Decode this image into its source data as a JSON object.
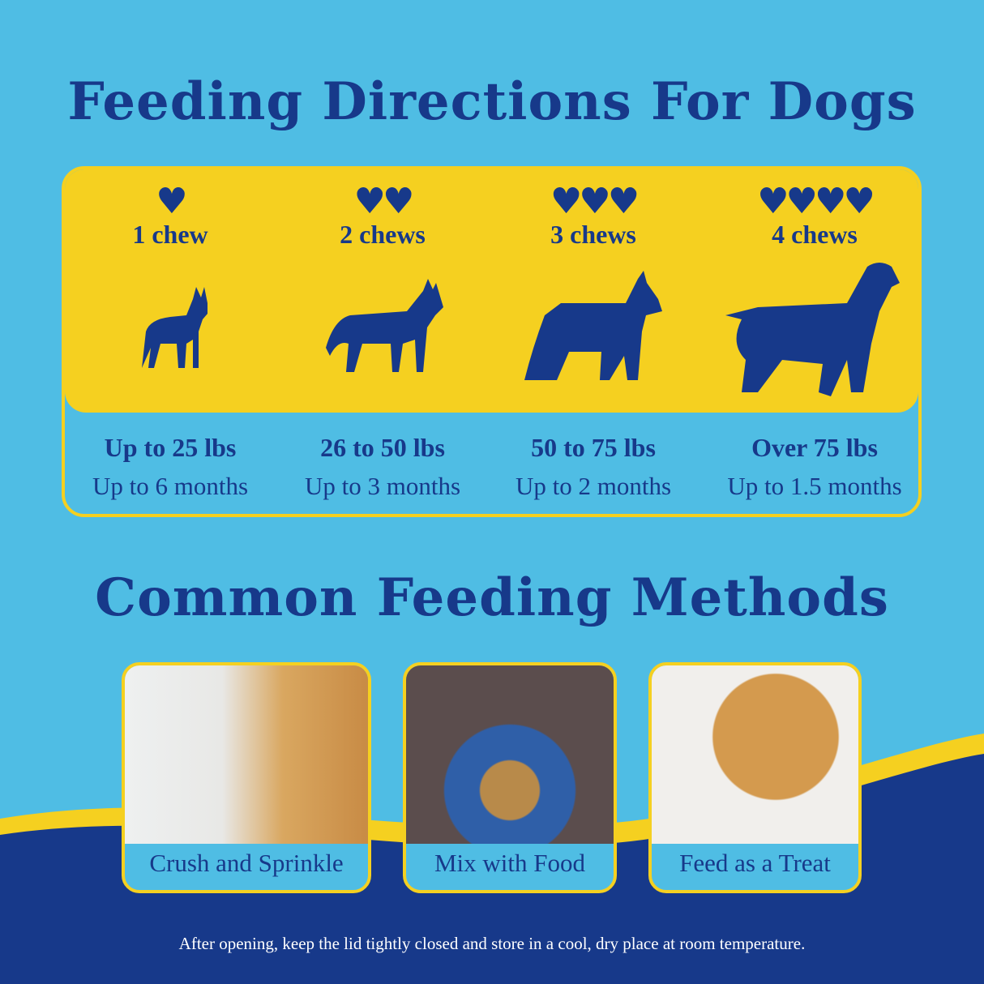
{
  "title": "Feeding Directions For Dogs",
  "tiers": [
    {
      "hearts": "♥",
      "chews": "1 chew",
      "weight": "Up to 25 lbs",
      "duration": "Up to 6 months"
    },
    {
      "hearts": "♥♥",
      "chews": "2 chews",
      "weight": "26 to 50 lbs",
      "duration": "Up to 3 months"
    },
    {
      "hearts": "♥♥♥",
      "chews": "3 chews",
      "weight": "50 to 75 lbs",
      "duration": "Up to 2 months"
    },
    {
      "hearts": "♥♥♥♥",
      "chews": "4 chews",
      "weight": "Over 75 lbs",
      "duration": "Up to 1.5 months"
    }
  ],
  "methods_title": "Common Feeding Methods",
  "methods": [
    {
      "label": "Crush and Sprinkle"
    },
    {
      "label": "Mix with Food"
    },
    {
      "label": "Feed as a Treat"
    }
  ],
  "storage_note": "After opening, keep the lid tightly closed and store in a cool, dry place at room temperature.",
  "colors": {
    "background": "#4fbde4",
    "navy": "#17398a",
    "yellow": "#f5d020"
  }
}
